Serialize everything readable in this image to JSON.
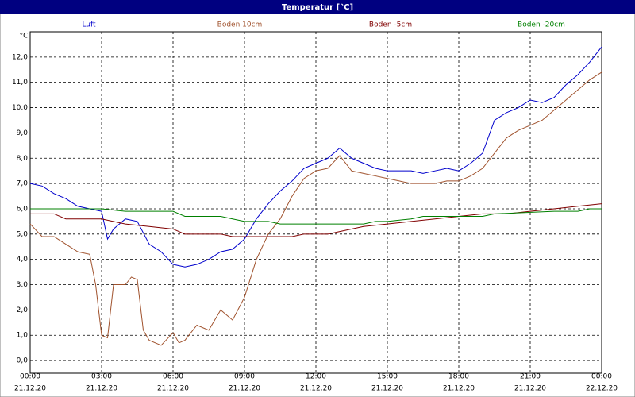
{
  "chart_data": {
    "type": "line",
    "title": "Temperatur [°C]",
    "y_unit": "°C",
    "xlim": [
      0,
      24
    ],
    "ylim": [
      -0.5,
      13.0
    ],
    "xticks": [
      {
        "value": 0,
        "label": "00:00"
      },
      {
        "value": 3,
        "label": "03:00"
      },
      {
        "value": 6,
        "label": "06:00"
      },
      {
        "value": 9,
        "label": "09:00"
      },
      {
        "value": 12,
        "label": "12:00"
      },
      {
        "value": 15,
        "label": "15:00"
      },
      {
        "value": 18,
        "label": "18:00"
      },
      {
        "value": 21,
        "label": "21:00"
      },
      {
        "value": 24,
        "label": "00:00"
      }
    ],
    "xtick_dates": [
      "21.12.20",
      "21.12.20",
      "21.12.20",
      "21.12.20",
      "21.12.20",
      "21.12.20",
      "21.12.20",
      "21.12.20",
      "22.12.20"
    ],
    "yticks": [
      {
        "value": 0,
        "label": "0,0"
      },
      {
        "value": 1,
        "label": "1,0"
      },
      {
        "value": 2,
        "label": "2,0"
      },
      {
        "value": 3,
        "label": "3,0"
      },
      {
        "value": 4,
        "label": "4,0"
      },
      {
        "value": 5,
        "label": "5,0"
      },
      {
        "value": 6,
        "label": "6,0"
      },
      {
        "value": 7,
        "label": "7,0"
      },
      {
        "value": 8,
        "label": "8,0"
      },
      {
        "value": 9,
        "label": "9,0"
      },
      {
        "value": 10,
        "label": "10,0"
      },
      {
        "value": 11,
        "label": "11,0"
      },
      {
        "value": 12,
        "label": "12,0"
      }
    ],
    "grid": true,
    "series": [
      {
        "name": "Luft",
        "color": "#0000cc",
        "x": [
          0,
          0.5,
          1,
          1.5,
          2,
          2.5,
          3,
          3.25,
          3.5,
          4,
          4.5,
          5,
          5.5,
          6,
          6.5,
          7,
          7.5,
          8,
          8.5,
          9,
          9.5,
          10,
          10.5,
          11,
          11.5,
          12,
          12.5,
          13,
          13.5,
          14,
          14.5,
          15,
          15.5,
          16,
          16.5,
          17,
          17.5,
          18,
          18.5,
          19,
          19.5,
          20,
          20.5,
          21,
          21.5,
          22,
          22.5,
          23,
          23.5,
          24
        ],
        "values": [
          7.0,
          6.9,
          6.6,
          6.4,
          6.1,
          6.0,
          5.9,
          4.8,
          5.2,
          5.6,
          5.5,
          4.6,
          4.3,
          3.8,
          3.7,
          3.8,
          4.0,
          4.3,
          4.4,
          4.8,
          5.6,
          6.2,
          6.7,
          7.1,
          7.6,
          7.8,
          8.0,
          8.4,
          8.0,
          7.8,
          7.6,
          7.5,
          7.5,
          7.5,
          7.4,
          7.5,
          7.6,
          7.5,
          7.8,
          8.2,
          9.5,
          9.8,
          10.0,
          10.3,
          10.2,
          10.4,
          10.9,
          11.3,
          11.8,
          12.4
        ]
      },
      {
        "name": "Boden 10cm",
        "color": "#a0522d",
        "x": [
          0,
          0.5,
          1,
          1.5,
          2,
          2.5,
          2.75,
          3,
          3.25,
          3.5,
          4,
          4.25,
          4.5,
          4.75,
          5,
          5.5,
          6,
          6.25,
          6.5,
          7,
          7.5,
          8,
          8.5,
          9,
          9.5,
          10,
          10.5,
          11,
          11.5,
          12,
          12.5,
          13,
          13.5,
          14,
          14.5,
          15,
          15.5,
          16,
          16.5,
          17,
          17.5,
          18,
          18.5,
          19,
          19.5,
          20,
          20.5,
          21,
          21.5,
          22,
          22.5,
          23,
          23.5,
          24
        ],
        "values": [
          5.4,
          4.9,
          4.9,
          4.6,
          4.3,
          4.2,
          3.0,
          1.0,
          0.9,
          3.0,
          3.0,
          3.3,
          3.2,
          1.2,
          0.8,
          0.6,
          1.1,
          0.7,
          0.8,
          1.4,
          1.2,
          2.0,
          1.6,
          2.5,
          4.0,
          5.0,
          5.6,
          6.5,
          7.2,
          7.5,
          7.6,
          8.1,
          7.5,
          7.4,
          7.3,
          7.2,
          7.1,
          7.0,
          7.0,
          7.0,
          7.1,
          7.1,
          7.3,
          7.6,
          8.2,
          8.8,
          9.1,
          9.3,
          9.5,
          9.9,
          10.3,
          10.7,
          11.1,
          11.4
        ]
      },
      {
        "name": "Boden -5cm",
        "color": "#800000",
        "x": [
          0,
          1,
          1.5,
          3,
          4,
          5,
          6,
          6.5,
          8,
          8.5,
          11,
          11.5,
          12.5,
          13,
          14,
          15,
          16,
          17,
          18,
          19,
          20,
          21,
          22,
          23,
          24
        ],
        "values": [
          5.8,
          5.8,
          5.6,
          5.6,
          5.4,
          5.3,
          5.2,
          5.0,
          5.0,
          4.9,
          4.9,
          5.0,
          5.0,
          5.1,
          5.3,
          5.4,
          5.5,
          5.6,
          5.7,
          5.8,
          5.8,
          5.9,
          6.0,
          6.1,
          6.2
        ]
      },
      {
        "name": "Boden -20cm",
        "color": "#008000",
        "x": [
          0,
          3,
          4,
          6,
          6.5,
          8,
          8.5,
          9,
          10,
          10.5,
          14,
          14.5,
          15,
          16,
          16.5,
          19,
          19.5,
          22,
          23,
          23.5,
          24
        ],
        "values": [
          6.0,
          6.0,
          5.9,
          5.9,
          5.7,
          5.7,
          5.6,
          5.5,
          5.5,
          5.4,
          5.4,
          5.5,
          5.5,
          5.6,
          5.7,
          5.7,
          5.8,
          5.9,
          5.9,
          6.0,
          6.0
        ]
      }
    ]
  }
}
